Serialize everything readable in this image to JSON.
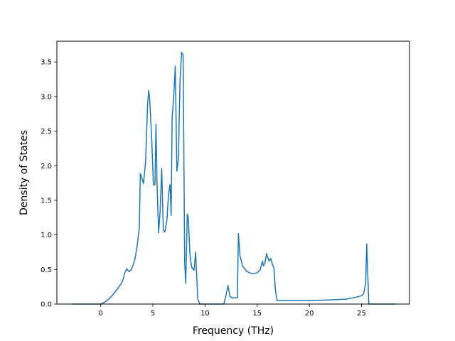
{
  "chart_data": {
    "type": "line",
    "title": "",
    "xlabel": "Frequency (THz)",
    "ylabel": "Density of States",
    "xlim": [
      -4.2,
      29.6
    ],
    "ylim": [
      0,
      3.8
    ],
    "xticks": [
      0,
      5,
      10,
      15,
      20,
      25
    ],
    "yticks": [
      0.0,
      0.5,
      1.0,
      1.5,
      2.0,
      2.5,
      3.0,
      3.5
    ],
    "ytick_labels": [
      "0.0",
      "0.5",
      "1.0",
      "1.5",
      "2.0",
      "2.5",
      "3.0",
      "3.5"
    ],
    "grid": false,
    "legend": false,
    "line_color": "#1f77b4",
    "series": [
      {
        "x": [
          -2.7,
          -1.5,
          -0.5,
          0.0,
          0.3,
          0.6,
          0.9,
          1.2,
          1.5,
          1.8,
          2.1,
          2.3,
          2.5,
          2.7,
          2.9,
          3.1,
          3.3,
          3.5,
          3.7,
          3.8,
          3.9,
          4.1,
          4.3,
          4.5,
          4.6,
          4.7,
          4.9,
          5.05,
          5.2,
          5.3,
          5.4,
          5.55,
          5.7,
          5.85,
          6.0,
          6.15,
          6.35,
          6.5,
          6.65,
          6.75,
          6.85,
          7.0,
          7.15,
          7.3,
          7.45,
          7.6,
          7.75,
          7.9,
          8.05,
          8.15,
          8.3,
          8.4,
          8.55,
          8.7,
          8.8,
          8.95,
          9.1,
          9.3,
          9.5,
          9.6,
          9.75,
          9.9,
          10.2,
          11.0,
          11.8,
          12.0,
          12.2,
          12.4,
          12.6,
          13.1,
          13.2,
          13.35,
          13.6,
          14.0,
          14.5,
          15.0,
          15.3,
          15.5,
          15.6,
          15.75,
          15.9,
          16.0,
          16.15,
          16.3,
          16.45,
          16.6,
          16.75,
          16.9,
          17.5,
          20.0,
          22.0,
          23.5,
          24.5,
          25.0,
          25.2,
          25.4,
          25.5,
          25.7,
          26.0,
          28.2
        ],
        "y": [
          0.0,
          0.0,
          0.0,
          0.0,
          0.02,
          0.05,
          0.09,
          0.14,
          0.2,
          0.26,
          0.33,
          0.45,
          0.51,
          0.47,
          0.49,
          0.56,
          0.66,
          0.85,
          1.1,
          1.89,
          1.85,
          1.74,
          2.05,
          2.9,
          3.09,
          2.96,
          2.35,
          1.72,
          1.73,
          2.6,
          1.75,
          1.03,
          1.35,
          1.96,
          1.07,
          1.04,
          1.22,
          1.58,
          1.73,
          1.28,
          2.7,
          3.0,
          3.44,
          1.92,
          2.1,
          3.2,
          3.64,
          3.6,
          0.6,
          0.3,
          1.3,
          1.25,
          0.72,
          0.55,
          0.51,
          0.49,
          0.75,
          0.08,
          0.0,
          0.0,
          0.0,
          0.0,
          0.0,
          0.0,
          0.0,
          0.12,
          0.27,
          0.11,
          0.09,
          0.09,
          1.02,
          0.7,
          0.55,
          0.47,
          0.44,
          0.45,
          0.5,
          0.62,
          0.55,
          0.6,
          0.73,
          0.68,
          0.62,
          0.66,
          0.58,
          0.52,
          0.2,
          0.05,
          0.05,
          0.05,
          0.06,
          0.07,
          0.1,
          0.12,
          0.15,
          0.3,
          0.87,
          0.0,
          0.0,
          0.0
        ]
      }
    ]
  }
}
